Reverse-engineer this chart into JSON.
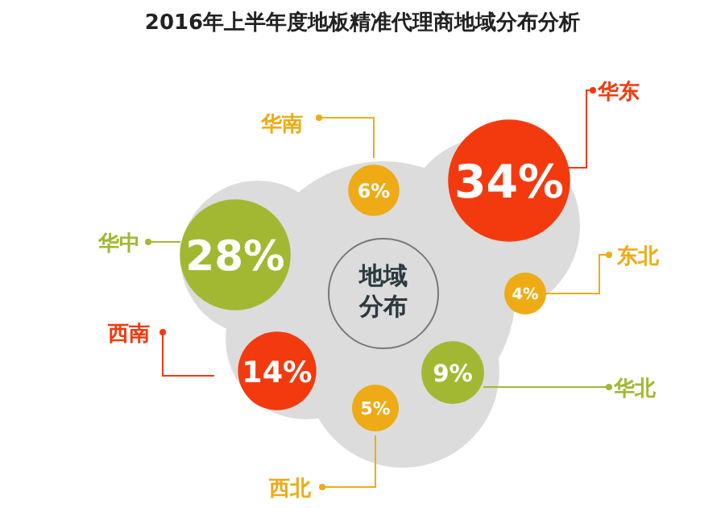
{
  "chart_data": {
    "type": "other",
    "title": "2016年上半年度地板精准代理商地域分布分析",
    "categories": [
      "华东",
      "华中",
      "西南",
      "华北",
      "华南",
      "西北",
      "东北"
    ],
    "values": [
      34,
      28,
      14,
      9,
      6,
      5,
      4
    ],
    "colors": [
      "#f33a0f",
      "#a3b832",
      "#f33a0f",
      "#a3b832",
      "#eeab16",
      "#eeab16",
      "#eeab16"
    ],
    "value_labels": [
      "34%",
      "28%",
      "14%",
      "9%",
      "6%",
      "5%",
      "4%"
    ],
    "annotations": [
      "地域分布"
    ]
  }
}
